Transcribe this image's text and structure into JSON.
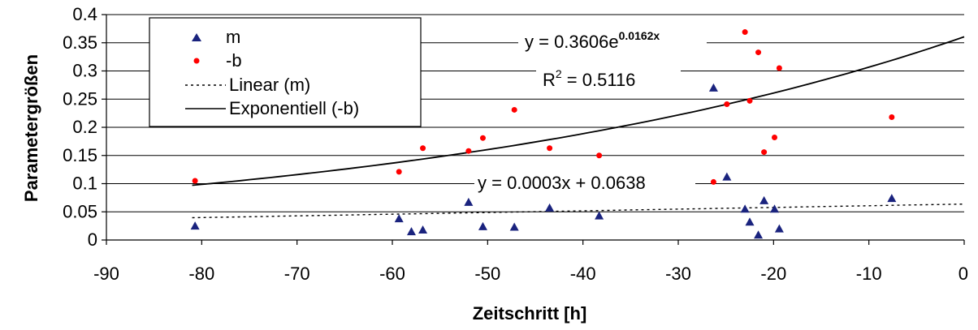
{
  "chart_data": {
    "type": "scatter",
    "xlabel": "Zeitschritt [h]",
    "ylabel": "Parametergrößen",
    "xlim": [
      -90,
      0
    ],
    "ylim": [
      0,
      0.4
    ],
    "x_ticks": [
      -90,
      -80,
      -70,
      -60,
      -50,
      -40,
      -30,
      -20,
      -10,
      0
    ],
    "y_ticks": [
      0,
      0.05,
      0.1,
      0.15,
      0.2,
      0.25,
      0.3,
      0.35,
      0.4
    ],
    "x_tick_labels": [
      "-90",
      "-80",
      "-70",
      "-60",
      "-50",
      "-40",
      "-30",
      "-20",
      "-10",
      "0"
    ],
    "y_tick_labels": [
      "0",
      "0.05",
      "0.1",
      "0.15",
      "0.2",
      "0.25",
      "0.3",
      "0.35",
      "0.4"
    ],
    "grid": "horizontal",
    "legend_position": "top-left",
    "series": [
      {
        "name": "m",
        "marker": "triangle",
        "color": "#1a237e",
        "points": [
          [
            -80.7,
            0.025
          ],
          [
            -59.3,
            0.038
          ],
          [
            -58.0,
            0.015
          ],
          [
            -56.8,
            0.018
          ],
          [
            -52.0,
            0.067
          ],
          [
            -50.5,
            0.024
          ],
          [
            -47.2,
            0.023
          ],
          [
            -43.5,
            0.057
          ],
          [
            -38.3,
            0.043
          ],
          [
            -26.3,
            0.27
          ],
          [
            -24.9,
            0.112
          ],
          [
            -23.0,
            0.055
          ],
          [
            -22.5,
            0.032
          ],
          [
            -21.6,
            0.009
          ],
          [
            -21.0,
            0.07
          ],
          [
            -19.9,
            0.055
          ],
          [
            -19.4,
            0.02
          ],
          [
            -7.6,
            0.074
          ]
        ]
      },
      {
        "name": "-b",
        "marker": "circle",
        "color": "#ff0000",
        "points": [
          [
            -80.7,
            0.105
          ],
          [
            -59.3,
            0.121
          ],
          [
            -56.8,
            0.163
          ],
          [
            -52.0,
            0.158
          ],
          [
            -50.5,
            0.181
          ],
          [
            -47.2,
            0.231
          ],
          [
            -43.5,
            0.163
          ],
          [
            -38.3,
            0.15
          ],
          [
            -26.3,
            0.103
          ],
          [
            -24.9,
            0.241
          ],
          [
            -23.0,
            0.369
          ],
          [
            -22.5,
            0.247
          ],
          [
            -21.6,
            0.333
          ],
          [
            -21.0,
            0.156
          ],
          [
            -19.9,
            0.182
          ],
          [
            -19.4,
            0.305
          ],
          [
            -7.6,
            0.218
          ]
        ]
      }
    ],
    "trendlines": [
      {
        "name": "Linear (m)",
        "kind": "linear",
        "slope": 0.0003,
        "intercept": 0.0638,
        "x_range": [
          -81,
          0
        ],
        "style": "dotted",
        "equation": "y = 0.0003x + 0.0638"
      },
      {
        "name": "Exponentiell (-b)",
        "kind": "exponential",
        "a": 0.3606,
        "b": 0.0162,
        "x_range": [
          -81,
          0
        ],
        "style": "solid",
        "equation_base": "y = 0.3606e",
        "equation_exp": "0.0162x",
        "r2_label": "R",
        "r2_sup": "2",
        "r2_value": " = 0.5116"
      }
    ]
  }
}
